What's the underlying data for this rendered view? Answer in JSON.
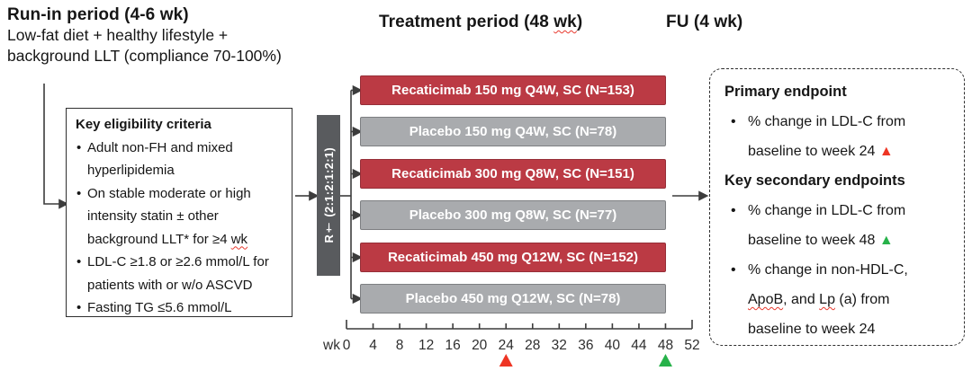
{
  "headers": {
    "run_in_title": "Run-in period (4-6 wk)",
    "run_in_sub1": "Low-fat diet + healthy lifestyle +",
    "run_in_sub2": "background LLT (compliance 70-100%)",
    "treatment_title": [
      {
        "t": "Treatment period (48 "
      },
      {
        "t": "wk",
        "wavy": true
      },
      {
        "t": ")"
      }
    ],
    "fu_title": "FU (4 wk)"
  },
  "eligibility_box": {
    "title": "Key eligibility criteria",
    "items": [
      [
        {
          "t": "Adult non-FH and mixed hyperlipidemia"
        }
      ],
      [
        {
          "t": "On stable moderate or high intensity statin ± other background LLT* for ≥4 "
        },
        {
          "t": "wk",
          "wavy": true
        }
      ],
      [
        {
          "t": "LDL-C ≥1.8 or ≥2.6 mmol/L for patients with or w/o ASCVD"
        }
      ],
      [
        {
          "t": "Fasting TG ≤5.6 mmol/L"
        }
      ]
    ]
  },
  "randomization": {
    "label": "R† (2:1:2:1:2:1)"
  },
  "arms": [
    {
      "label": "Recaticimab 150 mg Q4W, SC (N=153)",
      "type": "active"
    },
    {
      "label": "Placebo 150 mg Q4W, SC (N=78)",
      "type": "placebo"
    },
    {
      "label": "Recaticimab 300 mg Q8W, SC (N=151)",
      "type": "active"
    },
    {
      "label": "Placebo 300 mg Q8W, SC (N=77)",
      "type": "placebo"
    },
    {
      "label": "Recaticimab 450 mg Q12W, SC (N=152)",
      "type": "active"
    },
    {
      "label": "Placebo 450 mg Q12W, SC (N=78)",
      "type": "placebo"
    }
  ],
  "timeline": {
    "unit_label": "wk",
    "ticks": [
      0,
      4,
      8,
      12,
      16,
      20,
      24,
      28,
      32,
      36,
      40,
      44,
      48,
      52
    ],
    "markers": [
      {
        "week": 24,
        "shape": "triangle-up",
        "color": "#ee3524"
      },
      {
        "week": 48,
        "shape": "triangle-up",
        "color": "#27b24a"
      }
    ]
  },
  "endpoints_box": {
    "sections": [
      {
        "title": "Primary endpoint",
        "bullets": [
          [
            {
              "t": "% change in LDL-C from baseline to week 24 "
            },
            {
              "t": "▲",
              "color": "#ee3524"
            }
          ]
        ]
      },
      {
        "title": "Key secondary endpoints",
        "bullets": [
          [
            {
              "t": "% change in LDL-C from baseline to week 48 "
            },
            {
              "t": "▲",
              "color": "#27b24a"
            }
          ],
          [
            {
              "t": "% change in non-HDL-C, "
            },
            {
              "t": "ApoB",
              "wavy": true
            },
            {
              "t": ", and "
            },
            {
              "t": "Lp",
              "wavy": true
            },
            {
              "t": " (a) from baseline to week 24"
            }
          ]
        ]
      }
    ]
  },
  "colors": {
    "active_arm": "#bb3a44",
    "active_arm_border": "#962f38",
    "placebo_arm": "#a9abae",
    "placebo_arm_border": "#7d7f82",
    "randomization_bar": "#595b5e",
    "marker_week24": "#ee3524",
    "marker_week48": "#27b24a",
    "line": "#3c3c3c"
  }
}
